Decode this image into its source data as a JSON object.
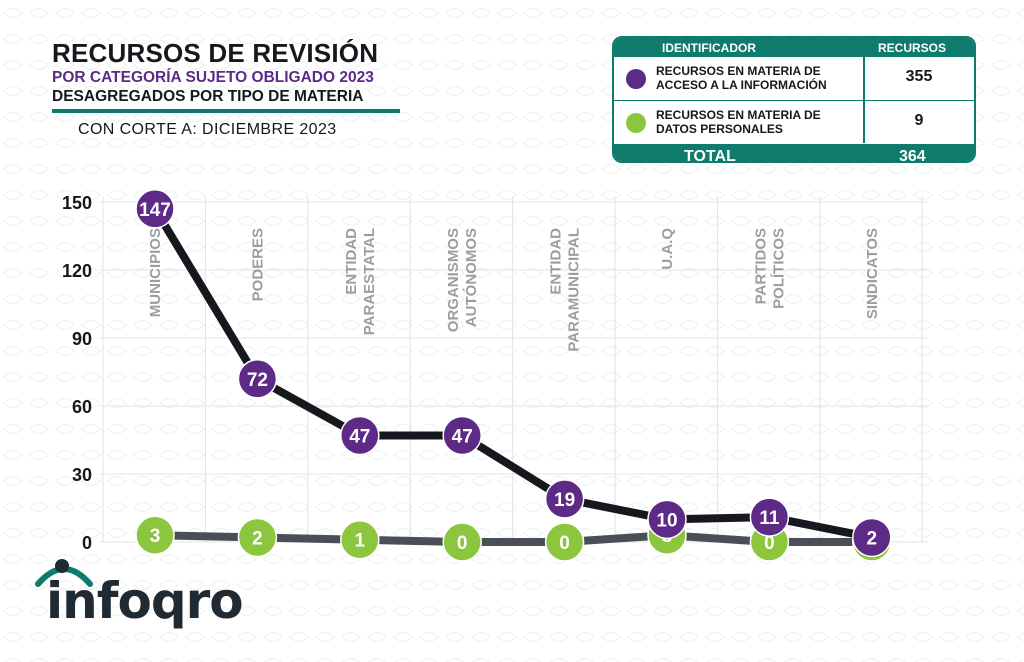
{
  "title": {
    "line1": "RECURSOS DE REVISIÓN",
    "line2": "POR CATEGORÍA SUJETO OBLIGADO 2023",
    "line3": "DESAGREGADOS POR TIPO DE MATERIA",
    "cutoff": "CON CORTE A: DICIEMBRE 2023"
  },
  "legend": {
    "col_identifier": "IDENTIFICADOR",
    "col_resources": "RECURSOS",
    "rows": [
      {
        "label": "RECURSOS EN MATERIA DE ACCESO A LA INFORMACIÓN",
        "value": "355",
        "color": "#5d2a86"
      },
      {
        "label": "RECURSOS EN MATERIA DE DATOS PERSONALES",
        "value": "9",
        "color": "#8cc63f"
      }
    ],
    "total_label": "TOTAL",
    "total_value": "364"
  },
  "logo": {
    "text_main": "infoqro"
  },
  "colors": {
    "purple": "#5d2a86",
    "green": "#8cc63f",
    "teal": "#0e7b6c",
    "dark": "#15181d",
    "gray_line": "#4a4f57"
  },
  "chart_data": {
    "type": "line",
    "title": "RECURSOS DE REVISIÓN POR CATEGORÍA SUJETO OBLIGADO 2023",
    "categories": [
      "MUNICIPIOS",
      "PODERES",
      "ENTIDAD PARAESTATAL",
      "ORGANISMOS AUTÓNOMOS",
      "ENTIDAD PARAMUNICIPAL",
      "U.A.Q",
      "PARTIDOS POLÍTICOS",
      "SINDICATOS"
    ],
    "category_label_lines": [
      [
        "MUNICIPIOS"
      ],
      [
        "PODERES"
      ],
      [
        "ENTIDAD",
        "PARAESTATAL"
      ],
      [
        "ORGANISMOS",
        "AUTÓNOMOS"
      ],
      [
        "ENTIDAD",
        "PARAMUNICIPAL"
      ],
      [
        "U.A.Q"
      ],
      [
        "PARTIDOS",
        "POLÍTICOS"
      ],
      [
        "SINDICATOS"
      ]
    ],
    "series": [
      {
        "name": "RECURSOS EN MATERIA DE ACCESO A LA INFORMACIÓN",
        "values": [
          147,
          72,
          47,
          47,
          19,
          10,
          11,
          2
        ]
      },
      {
        "name": "RECURSOS EN MATERIA DE DATOS PERSONALES",
        "values": [
          3,
          2,
          1,
          0,
          0,
          3,
          0,
          0
        ]
      }
    ],
    "ylim": [
      0,
      150
    ],
    "yticks": [
      0,
      30,
      60,
      90,
      120,
      150
    ],
    "xlabel": "",
    "ylabel": "",
    "grid": true
  }
}
